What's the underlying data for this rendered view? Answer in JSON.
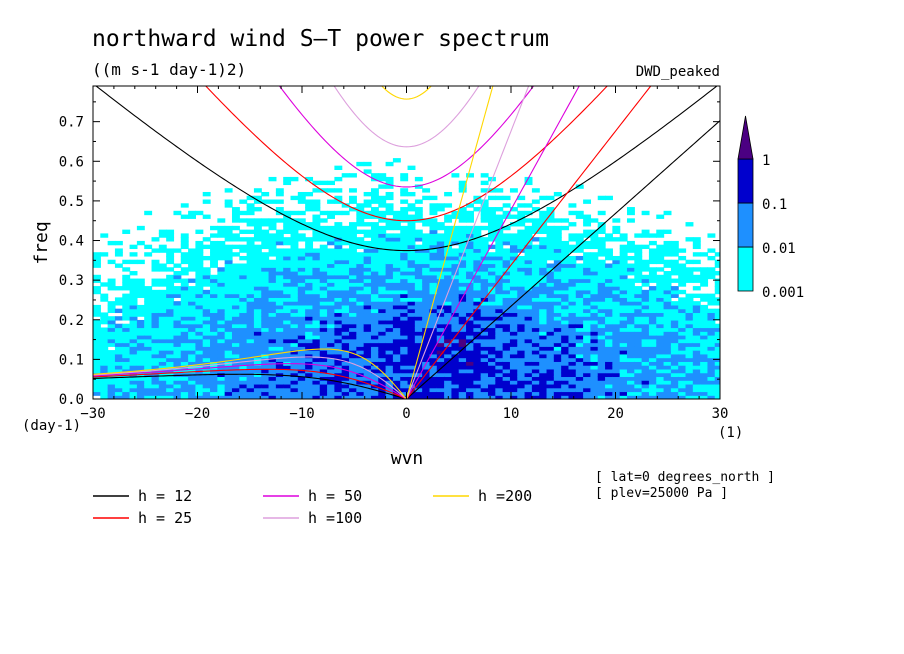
{
  "chart_data": {
    "type": "heatmap",
    "title": "northward wind S–T power spectrum",
    "subtitle": "((m s-1 day-1)2)",
    "source_label": "DWD_peaked",
    "xlabel": "wvn",
    "ylabel": "freq",
    "x_unit": "(1)",
    "y_unit": "(day-1)",
    "xlim": [
      -30,
      30
    ],
    "ylim": [
      0,
      0.79
    ],
    "x_ticks": [
      -30,
      -20,
      -10,
      0,
      10,
      20,
      30
    ],
    "x_tick_labels": [
      "−30",
      "−20",
      "−10",
      "0",
      "10",
      "20",
      "30"
    ],
    "y_ticks": [
      0,
      0.1,
      0.2,
      0.3,
      0.4,
      0.5,
      0.6,
      0.7
    ],
    "y_tick_labels": [
      "0.0",
      "0.1",
      "0.2",
      "0.3",
      "0.4",
      "0.5",
      "0.6",
      "0.7"
    ],
    "colorbar": {
      "levels": [
        "0.001",
        "0.01",
        "0.1",
        "1"
      ],
      "colors": [
        "#00ffff",
        "#1e90ff",
        "#0000cd",
        "#4b0082"
      ]
    },
    "dispersion_curves": [
      {
        "label": "h = 12",
        "h": 12,
        "color": "#000000"
      },
      {
        "label": "h = 25",
        "h": 25,
        "color": "#ff0000"
      },
      {
        "label": "h = 50",
        "h": 50,
        "color": "#dd00dd"
      },
      {
        "label": "h =100",
        "h": 100,
        "color": "#dda0dd"
      },
      {
        "label": "h =200",
        "h": 200,
        "color": "#ffd700"
      }
    ],
    "annotations": [
      "[ lat=0 degrees_north ]",
      "[ plev=25000 Pa ]"
    ],
    "grid": false,
    "legend_placement": "bottom"
  }
}
